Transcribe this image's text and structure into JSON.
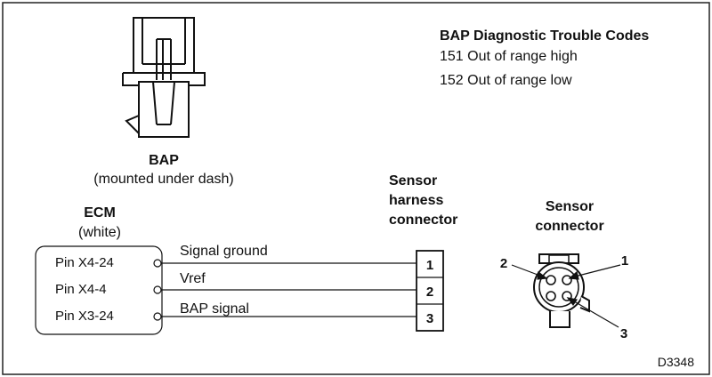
{
  "dtc": {
    "title": "BAP Diagnostic Trouble Codes",
    "codes": [
      "151 Out of range high",
      "152 Out of range low"
    ]
  },
  "bap": {
    "label": "BAP",
    "sublabel": "(mounted under dash)"
  },
  "ecm": {
    "label": "ECM",
    "sublabel": "(white)",
    "pins": [
      "Pin X4-24",
      "Pin X4-4",
      "Pin X3-24"
    ]
  },
  "wires": [
    "Signal ground",
    "Vref",
    "BAP signal"
  ],
  "harness_connector": {
    "label_lines": [
      "Sensor",
      "harness",
      "connector"
    ],
    "pins": [
      "1",
      "2",
      "3"
    ]
  },
  "sensor_connector": {
    "label_lines": [
      "Sensor",
      "connector"
    ],
    "pins": [
      "1",
      "2",
      "3"
    ]
  },
  "figure_id": "D3348"
}
